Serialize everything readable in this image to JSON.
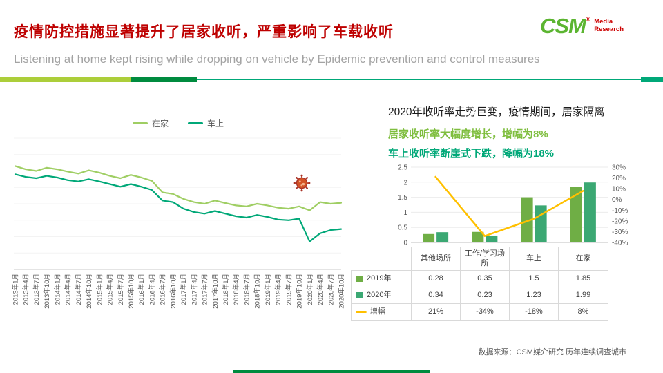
{
  "header": {
    "title": "疫情防控措施显著提升了居家收听，严重影响了车载收听",
    "subtitle": "Listening at home kept rising while dropping on vehicle by Epidemic prevention and control measures",
    "logo": {
      "name": "CSM",
      "reg": "®",
      "tagline1": "Media",
      "tagline2": "Research"
    }
  },
  "insights": {
    "line1": "2020年收听率走势巨变，疫情期间，居家隔离",
    "line2": "居家收听率大幅度增长，增幅为8%",
    "line3": "车上收听率断崖式下跌，降幅为18%"
  },
  "chart_data": [
    {
      "type": "line",
      "title": "",
      "legend_position": "top",
      "ylim": [
        0,
        4
      ],
      "x": [
        "2013年1月",
        "2013年4月",
        "2013年7月",
        "2013年10月",
        "2014年1月",
        "2014年4月",
        "2014年7月",
        "2014年10月",
        "2015年1月",
        "2015年4月",
        "2015年7月",
        "2015年10月",
        "2016年1月",
        "2016年4月",
        "2016年7月",
        "2016年10月",
        "2017年1月",
        "2017年4月",
        "2017年7月",
        "2017年10月",
        "2018年1月",
        "2018年4月",
        "2018年7月",
        "2018年10月",
        "2019年1月",
        "2019年4月",
        "2019年7月",
        "2019年10月",
        "2020年1月",
        "2020年4月",
        "2020年7月",
        "2020年10月"
      ],
      "series": [
        {
          "name": "在家",
          "color": "#9FCE63",
          "values": [
            3.15,
            3.05,
            3.0,
            3.1,
            3.05,
            2.98,
            2.92,
            3.02,
            2.95,
            2.85,
            2.78,
            2.88,
            2.8,
            2.7,
            2.35,
            2.3,
            2.15,
            2.05,
            2.0,
            2.1,
            2.02,
            1.95,
            1.92,
            2.0,
            1.95,
            1.88,
            1.85,
            1.92,
            1.8,
            2.05,
            2.0,
            2.03
          ]
        },
        {
          "name": "车上",
          "color": "#00A878",
          "values": [
            2.9,
            2.82,
            2.78,
            2.85,
            2.8,
            2.72,
            2.68,
            2.75,
            2.68,
            2.6,
            2.52,
            2.6,
            2.52,
            2.42,
            2.1,
            2.05,
            1.85,
            1.75,
            1.7,
            1.78,
            1.7,
            1.62,
            1.58,
            1.66,
            1.6,
            1.52,
            1.5,
            1.55,
            0.85,
            1.1,
            1.2,
            1.23
          ]
        }
      ],
      "annotation": "coronavirus-icon at 2020年1月"
    },
    {
      "type": "bar",
      "categories": [
        "其他场所",
        "工作/学习场所",
        "车上",
        "在家"
      ],
      "series": [
        {
          "name": "2019年",
          "type": "bar",
          "color": "#6FAE45",
          "values": [
            0.28,
            0.35,
            1.5,
            1.85
          ]
        },
        {
          "name": "2020年",
          "type": "bar",
          "color": "#3BA873",
          "values": [
            0.34,
            0.23,
            1.23,
            1.99
          ]
        },
        {
          "name": "增幅",
          "type": "line",
          "color": "#FFC000",
          "values_pct": [
            21,
            -34,
            -18,
            8
          ]
        }
      ],
      "left_axis": {
        "min": 0,
        "max": 2.5,
        "ticks": [
          "0",
          "0.5",
          "1",
          "1.5",
          "2",
          "2.5"
        ]
      },
      "right_axis": {
        "min": -40,
        "max": 30,
        "ticks": [
          "30%",
          "20%",
          "10%",
          "0%",
          "-10%",
          "-20%",
          "-30%",
          "-40%"
        ]
      },
      "grid": true,
      "legend_position": "table-left"
    }
  ],
  "combo_table": {
    "rows": [
      {
        "key": "2019年",
        "values": [
          "0.28",
          "0.35",
          "1.5",
          "1.85"
        ]
      },
      {
        "key": "2020年",
        "values": [
          "0.34",
          "0.23",
          "1.23",
          "1.99"
        ]
      },
      {
        "key": "增幅",
        "values": [
          "21%",
          "-34%",
          "-18%",
          "8%"
        ]
      }
    ]
  },
  "footer": {
    "source": "数据来源：CSM媒介研究  历年连续调查城市"
  },
  "colors": {
    "title_red": "#BE0000",
    "logo_green": "#5CB531",
    "logo_red": "#CC0000",
    "home_line": "#9FCE63",
    "vehicle_line": "#00A878",
    "bar_2019": "#6FAE45",
    "bar_2020": "#3BA873",
    "growth_line": "#FFC000",
    "decor_light_green": "#ACCE3A",
    "decor_dark_green": "#008B3F"
  }
}
